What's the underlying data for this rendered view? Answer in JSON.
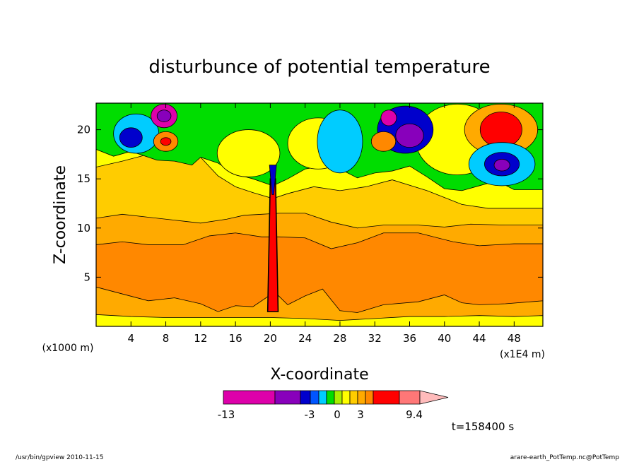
{
  "chart_data": {
    "type": "heatmap",
    "title": "disturbunce of potential temperature",
    "xlabel": "X-coordinate",
    "ylabel": "Z-coordinate",
    "x_unit_left": "(x1000 m)",
    "x_unit_right": "(x1E4 m)",
    "x_ticks": [
      "4",
      "8",
      "12",
      "16",
      "20",
      "24",
      "28",
      "32",
      "36",
      "40",
      "44",
      "48"
    ],
    "y_ticks": [
      "5",
      "10",
      "15",
      "20"
    ],
    "xlim": [
      0,
      51.3
    ],
    "ylim": [
      0,
      22.7
    ],
    "colorbar": {
      "colors": [
        "#dd00aa",
        "#8800bb",
        "#0000cc",
        "#0055ff",
        "#00ccff",
        "#00dd00",
        "#aaee00",
        "#ffff00",
        "#ffcc00",
        "#ffaa00",
        "#ff8800",
        "#ff0000",
        "#ff7777",
        "#ffbbbb"
      ],
      "labels": [
        "-13",
        "-3",
        "0",
        "3",
        "9.4"
      ]
    },
    "time_label": "t=158400 s"
  },
  "footer": {
    "left": "/usr/bin/gpview   2010-11-15",
    "right": "arare-earth_PotTemp.nc@PotTemp"
  }
}
